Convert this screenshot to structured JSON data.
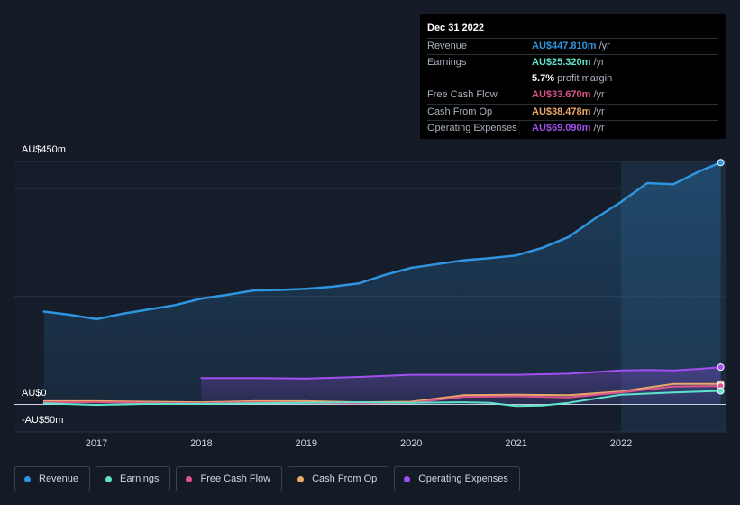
{
  "tooltip": {
    "date": "Dec 31 2022",
    "rows": [
      {
        "label": "Revenue",
        "value": "AU$447.810m",
        "unit": "/yr",
        "color": "#2f95e0"
      },
      {
        "label": "Earnings",
        "value": "AU$25.320m",
        "unit": "/yr",
        "color": "#5fe3cc"
      },
      {
        "label": "Free Cash Flow",
        "value": "AU$33.670m",
        "unit": "/yr",
        "color": "#d9558a"
      },
      {
        "label": "Cash From Op",
        "value": "AU$38.478m",
        "unit": "/yr",
        "color": "#eaa96a"
      },
      {
        "label": "Operating Expenses",
        "value": "AU$69.090m",
        "unit": "/yr",
        "color": "#a34ff0"
      }
    ],
    "margin_value": "5.7%",
    "margin_label": "profit margin"
  },
  "chart_data": {
    "type": "line",
    "y_ticks": [
      "AU$450m",
      "AU$0",
      "-AU$50m"
    ],
    "ylim": [
      -50,
      450
    ],
    "xlim": [
      2016.5,
      2022.95
    ],
    "x_ticks": [
      "2017",
      "2018",
      "2019",
      "2020",
      "2021",
      "2022"
    ],
    "highlight_from": 2022.0,
    "series": [
      {
        "name": "Revenue",
        "color": "#2f95e0",
        "area": true,
        "x": [
          2016.5,
          2016.75,
          2017.0,
          2017.25,
          2017.5,
          2017.75,
          2018.0,
          2018.25,
          2018.5,
          2018.75,
          2019.0,
          2019.25,
          2019.5,
          2019.75,
          2020.0,
          2020.25,
          2020.5,
          2020.75,
          2021.0,
          2021.25,
          2021.5,
          2021.75,
          2022.0,
          2022.25,
          2022.5,
          2022.75,
          2022.95
        ],
        "y": [
          172,
          166,
          158,
          168,
          176,
          184,
          196,
          203,
          211,
          212,
          214,
          218,
          224,
          240,
          253,
          260,
          267,
          271,
          276,
          290,
          310,
          344,
          375,
          410,
          408,
          432,
          448
        ]
      },
      {
        "name": "Operating Expenses",
        "color": "#a34ff0",
        "area": true,
        "x": [
          2018.0,
          2018.5,
          2019.0,
          2019.5,
          2020.0,
          2020.5,
          2021.0,
          2021.5,
          2022.0,
          2022.25,
          2022.5,
          2022.75,
          2022.95
        ],
        "y": [
          49,
          49,
          48,
          51,
          55,
          55,
          55,
          57,
          63,
          64,
          63,
          66,
          69
        ]
      },
      {
        "name": "Cash From Op",
        "color": "#eaa96a",
        "area": false,
        "x": [
          2016.5,
          2017.0,
          2017.5,
          2018.0,
          2018.5,
          2019.0,
          2019.5,
          2020.0,
          2020.5,
          2021.0,
          2021.5,
          2022.0,
          2022.5,
          2022.95
        ],
        "y": [
          6,
          6,
          5,
          4,
          6,
          6,
          4,
          5,
          17,
          18,
          17,
          24,
          38,
          38
        ]
      },
      {
        "name": "Free Cash Flow",
        "color": "#d9558a",
        "area": false,
        "x": [
          2016.5,
          2017.0,
          2017.5,
          2018.0,
          2018.5,
          2019.0,
          2019.5,
          2020.0,
          2020.5,
          2021.0,
          2021.5,
          2022.0,
          2022.5,
          2022.95
        ],
        "y": [
          4,
          4,
          3,
          2,
          4,
          3,
          2,
          3,
          14,
          15,
          13,
          22,
          33,
          34
        ]
      },
      {
        "name": "Earnings",
        "color": "#5fe3cc",
        "area": false,
        "x": [
          2016.5,
          2017.0,
          2017.5,
          2018.0,
          2018.5,
          2019.0,
          2019.5,
          2020.0,
          2020.5,
          2020.75,
          2021.0,
          2021.25,
          2021.5,
          2022.0,
          2022.5,
          2022.95
        ],
        "y": [
          2,
          -1,
          1,
          1,
          2,
          3,
          4,
          3,
          4,
          3,
          -3,
          -2,
          3,
          18,
          22,
          25
        ]
      }
    ]
  },
  "legend": [
    {
      "label": "Revenue",
      "color": "#2f95e0"
    },
    {
      "label": "Earnings",
      "color": "#5fe3cc"
    },
    {
      "label": "Free Cash Flow",
      "color": "#d9558a"
    },
    {
      "label": "Cash From Op",
      "color": "#eaa96a"
    },
    {
      "label": "Operating Expenses",
      "color": "#a34ff0"
    }
  ]
}
